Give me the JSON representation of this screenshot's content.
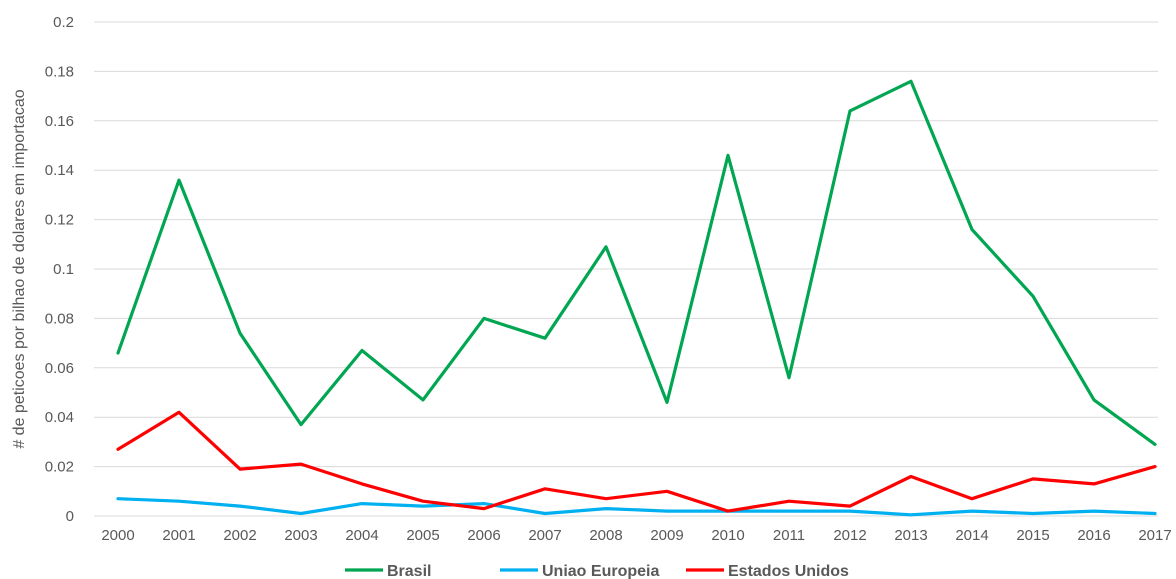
{
  "chart_data": {
    "type": "line",
    "title": "",
    "xlabel": "",
    "ylabel": "# de peticoes por bilhao de dolares em importacao",
    "ylim": [
      0,
      0.2
    ],
    "yticks": [
      "0",
      "0.02",
      "0.04",
      "0.06",
      "0.08",
      "0.1",
      "0.12",
      "0.14",
      "0.16",
      "0.18",
      "0.2"
    ],
    "grid": "horizontal",
    "legend_position": "bottom",
    "categories": [
      "2000",
      "2001",
      "2002",
      "2003",
      "2004",
      "2005",
      "2006",
      "2007",
      "2008",
      "2009",
      "2010",
      "2011",
      "2012",
      "2013",
      "2014",
      "2015",
      "2016",
      "2017"
    ],
    "series": [
      {
        "name": "Brasil",
        "color": "#00A651",
        "values": [
          0.066,
          0.136,
          0.074,
          0.037,
          0.067,
          0.047,
          0.08,
          0.072,
          0.109,
          0.046,
          0.146,
          0.056,
          0.164,
          0.176,
          0.116,
          0.089,
          0.047,
          0.029
        ]
      },
      {
        "name": "Uniao Europeia",
        "color": "#00B0F0",
        "values": [
          0.007,
          0.006,
          0.004,
          0.001,
          0.005,
          0.004,
          0.005,
          0.001,
          0.003,
          0.002,
          0.002,
          0.002,
          0.002,
          0.0005,
          0.002,
          0.001,
          0.002,
          0.001
        ]
      },
      {
        "name": "Estados Unidos",
        "color": "#FF0000",
        "values": [
          0.027,
          0.042,
          0.019,
          0.021,
          0.013,
          0.006,
          0.003,
          0.011,
          0.007,
          0.01,
          0.002,
          0.006,
          0.004,
          0.016,
          0.007,
          0.015,
          0.013,
          0.02
        ]
      }
    ]
  }
}
